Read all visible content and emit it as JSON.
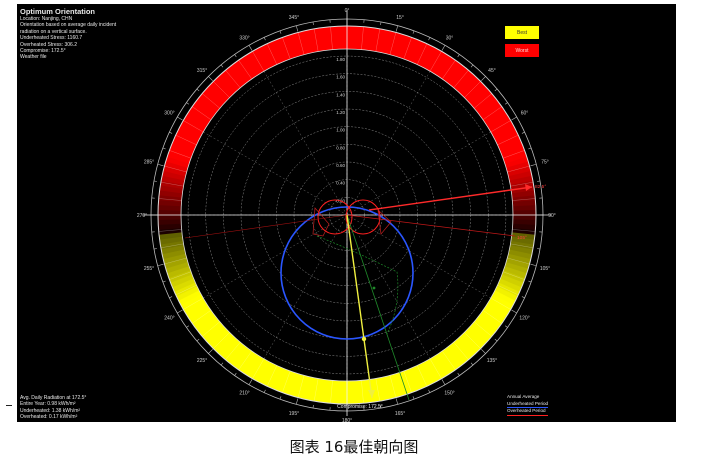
{
  "info": {
    "title": "Optimum Orientation",
    "lines": [
      "Location: Nanjing, CHN",
      "Orientation based on average daily incident",
      "radiation on a vertical surface.",
      "Underheated Stress: 1160.7",
      "Overheated Stress: 306.2",
      "Compromise: 172.5°",
      "Weather file"
    ]
  },
  "summary": {
    "lines": [
      "Avg. Daily Radiation at 172.5°",
      "Entire Year: 0.98 kWh/m²",
      "Underheated: 1.38 kWh/m²",
      "Overheated: 0.17 kWh/m²"
    ]
  },
  "legend": {
    "best": "Best",
    "worst": "Worst",
    "lines": [
      "Annual Average",
      "Underheated Period",
      "Overheated Period"
    ]
  },
  "compass": {
    "bearing_labels": [
      "0°",
      "15°",
      "30°",
      "45°",
      "60°",
      "75°",
      "90°",
      "105°",
      "120°",
      "135°",
      "150°",
      "165°",
      "180°",
      "195°",
      "210°",
      "225°",
      "240°",
      "255°",
      "270°",
      "285°",
      "300°",
      "315°",
      "330°",
      "345°"
    ],
    "radial_scale_labels": [
      "0.20",
      "0.40",
      "0.60",
      "0.80",
      "1.00",
      "1.20",
      "1.40",
      "1.60",
      "1.80"
    ],
    "compromise_label": "Compromise: 172.5°",
    "annotation_right_1": "82.5°",
    "annotation_right_2": "105°"
  },
  "colors": {
    "best": "#ffff00",
    "worst": "#ff0000",
    "annual": "#2a56ff",
    "underheated": "#2a56ff",
    "overheated": "#ff2020",
    "compromise": "#f0f040",
    "green_line": "#1f8a2a"
  },
  "caption": "图表 16最佳朝向图"
}
